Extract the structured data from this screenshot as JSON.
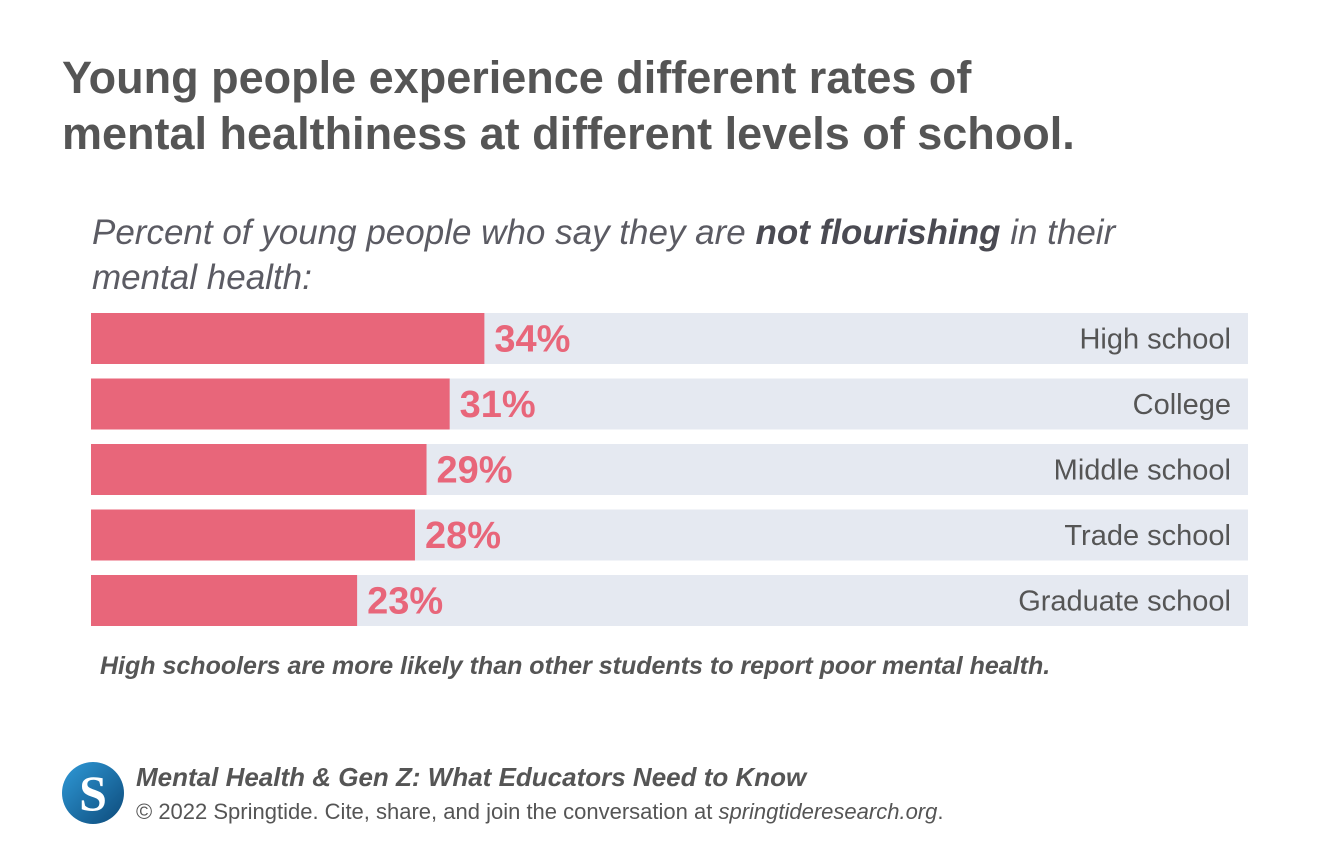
{
  "title": {
    "line1": "Young people experience different rates of",
    "line2": "mental healthiness at different levels of school."
  },
  "subtitle": {
    "prefix": "Percent of young people who say they are",
    "emphasis": "not flourishing",
    "suffix_line1": "in their",
    "line2": "mental health:"
  },
  "chart_data": {
    "type": "bar",
    "orientation": "horizontal",
    "categories": [
      "High school",
      "College",
      "Middle school",
      "Trade school",
      "Graduate school"
    ],
    "values": [
      34,
      31,
      29,
      28,
      23
    ],
    "value_labels": [
      "34%",
      "31%",
      "29%",
      "28%",
      "23%"
    ],
    "unit": "%",
    "xlim": [
      0,
      100
    ],
    "grid": false,
    "legend": "none",
    "colors": {
      "bar": "#e8667a",
      "track": "#e5e9f1",
      "value_label": "#e8667a",
      "category_label": "#555555"
    }
  },
  "note": "High schoolers are more likely than other students to report poor mental health.",
  "source": {
    "logo_letter": "S",
    "title": "Mental Health & Gen Z: What Educators Need to Know",
    "copyright_prefix": "© 2022 Springtide. Cite, share, and join the conversation at",
    "url": "springtideresearch.org",
    "copyright_suffix": "."
  },
  "colors": {
    "text": "#555555",
    "logo_dark": "#0d4a7a",
    "logo_light": "#2f9ad8"
  }
}
